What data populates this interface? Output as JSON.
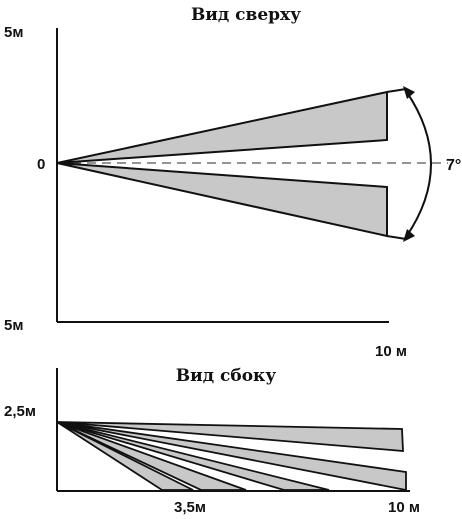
{
  "top_view": {
    "title": "Вид сверху",
    "y_top_label": "5м",
    "y_zero_label": "0",
    "y_bottom_label": "5м",
    "x_end_label": "10 м",
    "angle_label": "7°"
  },
  "side_view": {
    "title": "Вид сбоку",
    "height_label": "2,5м",
    "x_mid_label": "3,5м",
    "x_end_label": "10 м"
  },
  "colors": {
    "zone_fill": "#c8c8c8",
    "stroke": "#111111"
  }
}
